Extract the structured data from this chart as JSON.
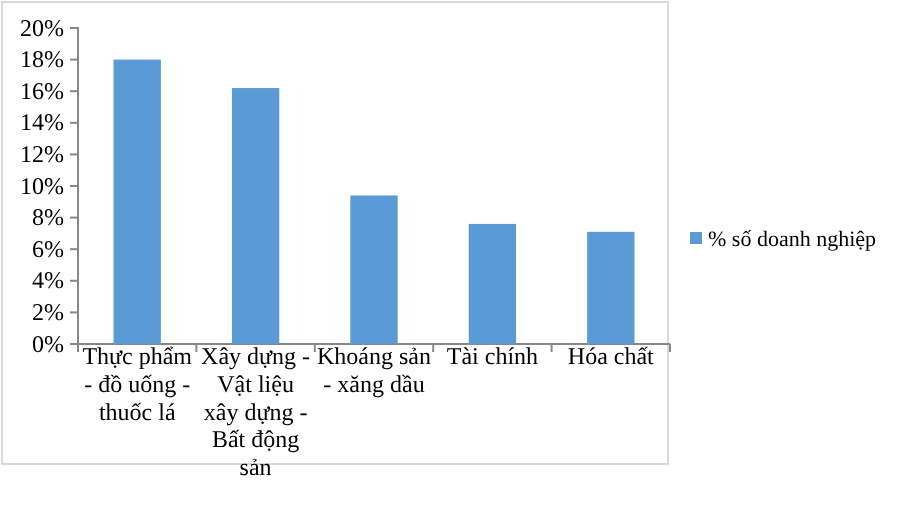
{
  "chart_data": {
    "type": "bar",
    "categories": [
      "Thực phẩm - đồ uống - thuốc lá",
      "Xây dựng - Vật liệu xây dựng - Bất động sản",
      "Khoáng sản - xăng dầu",
      "Tài chính",
      "Hóa chất"
    ],
    "series": [
      {
        "name": "% số doanh nghiệp",
        "color": "#5b9bd5",
        "values": [
          18,
          16.2,
          9.4,
          7.6,
          7.1
        ]
      }
    ],
    "ylim": [
      0,
      20
    ],
    "yticks": [
      {
        "value": 0,
        "label": "0%"
      },
      {
        "value": 2,
        "label": "2%"
      },
      {
        "value": 4,
        "label": "4%"
      },
      {
        "value": 6,
        "label": "6%"
      },
      {
        "value": 8,
        "label": "8%"
      },
      {
        "value": 10,
        "label": "10%"
      },
      {
        "value": 12,
        "label": "12%"
      },
      {
        "value": 14,
        "label": "14%"
      },
      {
        "value": 16,
        "label": "16%"
      },
      {
        "value": 18,
        "label": "18%"
      },
      {
        "value": 20,
        "label": "20%"
      }
    ],
    "legend": "right",
    "grid": false
  }
}
